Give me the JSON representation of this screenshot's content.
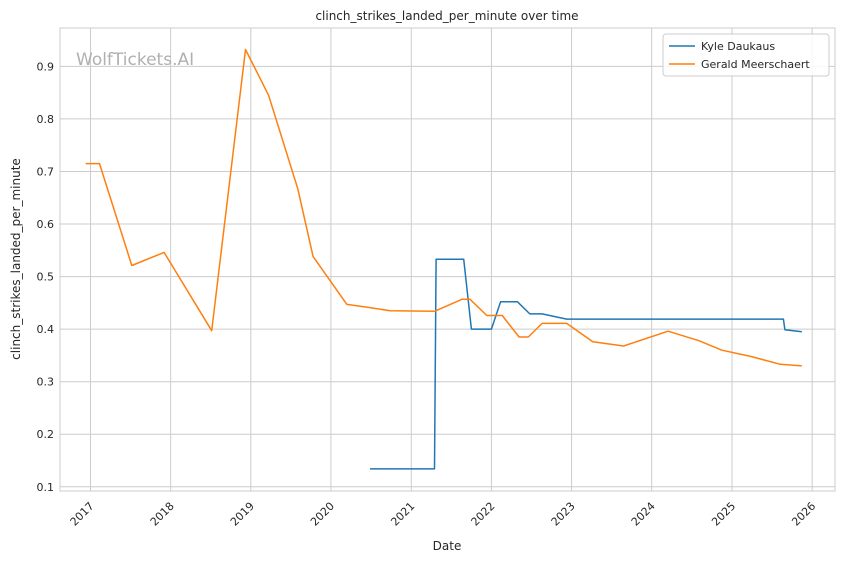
{
  "watermark": "WolfTickets.AI",
  "chart_data": {
    "type": "line",
    "title": "clinch_strikes_landed_per_minute over time",
    "xlabel": "Date",
    "ylabel": "clinch_strikes_landed_per_minute",
    "x_type": "date",
    "xlim": [
      "2016-08-15",
      "2026-04-15"
    ],
    "ylim": [
      0.092,
      0.973
    ],
    "xticks": [
      "2017",
      "2018",
      "2019",
      "2020",
      "2021",
      "2022",
      "2023",
      "2024",
      "2025",
      "2026"
    ],
    "yticks": [
      0.1,
      0.2,
      0.3,
      0.4,
      0.5,
      0.6,
      0.7,
      0.8,
      0.9
    ],
    "grid": true,
    "legend_position": "top-right",
    "series": [
      {
        "name": "Kyle Daukaus",
        "color": "#1f77b4",
        "points": [
          {
            "x": "2020-06-27",
            "y": 0.134
          },
          {
            "x": "2021-04-17",
            "y": 0.134
          },
          {
            "x": "2021-04-24",
            "y": 0.533
          },
          {
            "x": "2021-08-28",
            "y": 0.533
          },
          {
            "x": "2021-10-02",
            "y": 0.4
          },
          {
            "x": "2022-01-01",
            "y": 0.4
          },
          {
            "x": "2022-02-12",
            "y": 0.452
          },
          {
            "x": "2022-04-30",
            "y": 0.452
          },
          {
            "x": "2022-06-25",
            "y": 0.429
          },
          {
            "x": "2022-08-20",
            "y": 0.429
          },
          {
            "x": "2022-12-10",
            "y": 0.419
          },
          {
            "x": "2025-08-23",
            "y": 0.419
          },
          {
            "x": "2025-08-30",
            "y": 0.399
          },
          {
            "x": "2025-11-15",
            "y": 0.395
          }
        ]
      },
      {
        "name": "Gerald Meerschaert",
        "color": "#ff7f0e",
        "points": [
          {
            "x": "2016-12-10",
            "y": 0.715
          },
          {
            "x": "2017-02-11",
            "y": 0.715
          },
          {
            "x": "2017-07-08",
            "y": 0.521
          },
          {
            "x": "2017-12-02",
            "y": 0.546
          },
          {
            "x": "2018-07-07",
            "y": 0.397
          },
          {
            "x": "2018-12-08",
            "y": 0.932
          },
          {
            "x": "2019-03-23",
            "y": 0.845
          },
          {
            "x": "2019-08-03",
            "y": 0.667
          },
          {
            "x": "2019-10-12",
            "y": 0.538
          },
          {
            "x": "2020-03-14",
            "y": 0.447
          },
          {
            "x": "2020-06-27",
            "y": 0.441
          },
          {
            "x": "2020-09-26",
            "y": 0.435
          },
          {
            "x": "2021-04-17",
            "y": 0.434
          },
          {
            "x": "2021-08-21",
            "y": 0.457
          },
          {
            "x": "2021-09-25",
            "y": 0.457
          },
          {
            "x": "2021-12-11",
            "y": 0.426
          },
          {
            "x": "2022-02-19",
            "y": 0.426
          },
          {
            "x": "2022-05-07",
            "y": 0.385
          },
          {
            "x": "2022-06-18",
            "y": 0.385
          },
          {
            "x": "2022-08-20",
            "y": 0.411
          },
          {
            "x": "2022-12-10",
            "y": 0.411
          },
          {
            "x": "2023-04-08",
            "y": 0.376
          },
          {
            "x": "2023-08-26",
            "y": 0.368
          },
          {
            "x": "2024-03-16",
            "y": 0.396
          },
          {
            "x": "2024-08-03",
            "y": 0.378
          },
          {
            "x": "2024-11-16",
            "y": 0.36
          },
          {
            "x": "2025-03-29",
            "y": 0.348
          },
          {
            "x": "2025-08-09",
            "y": 0.333
          },
          {
            "x": "2025-11-15",
            "y": 0.33
          }
        ]
      }
    ]
  }
}
